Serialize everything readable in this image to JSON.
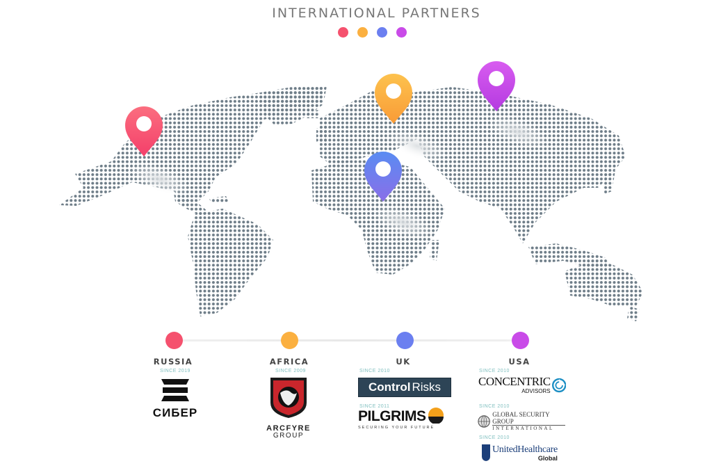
{
  "header": {
    "title": "INTERNATIONAL PARTNERS",
    "dot_colors": [
      "#f5516e",
      "#fbb040",
      "#6b7ff0",
      "#c94be8"
    ]
  },
  "map": {
    "dot_color": "#6e7d88",
    "pins": [
      {
        "name": "russia-pin",
        "color_top": "#fb6e7f",
        "color_bottom": "#f43f6a"
      },
      {
        "name": "africa-pin",
        "color_top": "#fdc24e",
        "color_bottom": "#f99b36"
      },
      {
        "name": "uk-pin",
        "color_top": "#5a8cf2",
        "color_bottom": "#8a6ee8"
      },
      {
        "name": "usa-pin",
        "color_top": "#d85cf0",
        "color_bottom": "#b43ae0"
      }
    ]
  },
  "regions": [
    {
      "name": "RUSSIA",
      "color": "#f5516e",
      "partners": [
        {
          "since": "SINCE 2019",
          "logo": "СИБЕР",
          "icon": "siber-logo"
        }
      ]
    },
    {
      "name": "AFRICA",
      "color": "#fbb040",
      "partners": [
        {
          "since": "SINCE 2009",
          "logo_line1": "ARCFYRE",
          "logo_line2": "GROUP",
          "icon": "arcfyre-shield-logo"
        }
      ]
    },
    {
      "name": "UK",
      "color": "#6b7ff0",
      "partners": [
        {
          "since": "SINCE 2010",
          "logo_a": "Control",
          "logo_b": "Risks",
          "icon": "control-risks-logo"
        },
        {
          "since": "SINCE 2011",
          "logo": "PILGRIMS",
          "tagline": "SECURING YOUR FUTURE",
          "icon": "pilgrims-logo"
        }
      ]
    },
    {
      "name": "USA",
      "color": "#c94be8",
      "partners": [
        {
          "since": "SINCE 2010",
          "logo": "CONCENTRIC",
          "logo_sub": "ADVISORS",
          "icon": "concentric-logo"
        },
        {
          "since": "SINCE 2010",
          "logo": "GLOBAL SECURITY GROUP",
          "logo_sub": "INTERNATIONAL",
          "icon": "gsg-logo"
        },
        {
          "since": "SINCE 2010",
          "logo": "UnitedHealthcare",
          "logo_sub": "Global",
          "icon": "united-healthcare-logo"
        }
      ]
    }
  ]
}
